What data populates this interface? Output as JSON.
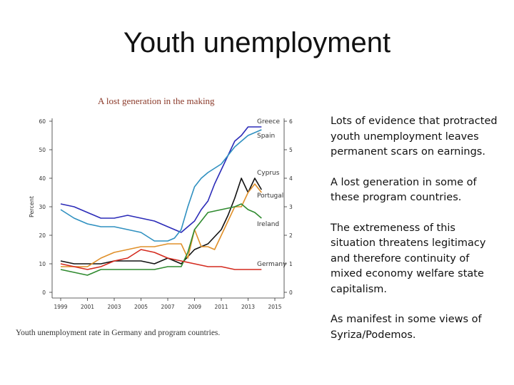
{
  "slide": {
    "title": "Youth unemployment",
    "bullets": [
      "Lots of evidence that protracted youth unemployment leaves permanent scars on earnings.",
      "A lost generation in some of these program countries.",
      "The extremeness of this situation threatens legitimacy and therefore continuity of mixed economy welfare state capitalism.",
      "As manifest in some views of Syriza/Podemos."
    ]
  },
  "chart_data": {
    "type": "line",
    "title": "A lost generation in the making",
    "caption": "Youth unemployment rate in Germany and program countries.",
    "ylabel": "Percent",
    "xlim": [
      1999,
      2015.5
    ],
    "ylim": [
      0,
      60
    ],
    "x_ticks": [
      "1999",
      "2001",
      "2003",
      "2005",
      "2007",
      "2009",
      "2011",
      "2013",
      "2015"
    ],
    "y_ticks": [
      "0",
      "10",
      "20",
      "30",
      "40",
      "50",
      "60"
    ],
    "grid": false,
    "legend": "direct labels at line ends",
    "series": [
      {
        "name": "Greece",
        "color": "#2b2bb8",
        "label_y": 60,
        "x": [
          1999,
          2000,
          2001,
          2002,
          2003,
          2004,
          2005,
          2006,
          2007,
          2008,
          2008.5,
          2009,
          2009.5,
          2010,
          2010.5,
          2011,
          2011.5,
          2012,
          2012.5,
          2013,
          2013.5,
          2014
        ],
        "y": [
          31,
          30,
          28,
          26,
          26,
          27,
          26,
          25,
          23,
          21,
          23,
          25,
          29,
          32,
          38,
          43,
          48,
          53,
          55,
          58,
          58,
          58
        ]
      },
      {
        "name": "Spain",
        "color": "#2f90c0",
        "label_y": 55,
        "x": [
          1999,
          2000,
          2001,
          2002,
          2003,
          2004,
          2005,
          2006,
          2007,
          2007.5,
          2008,
          2008.5,
          2009,
          2009.5,
          2010,
          2011,
          2012,
          2012.5,
          2013,
          2013.5,
          2014
        ],
        "y": [
          29,
          26,
          24,
          23,
          23,
          22,
          21,
          18,
          18,
          19,
          22,
          30,
          37,
          40,
          42,
          45,
          51,
          53,
          55,
          56,
          57
        ]
      },
      {
        "name": "Cyprus",
        "color": "#111111",
        "label_y": 42,
        "x": [
          1999,
          2000,
          2001,
          2002,
          2003,
          2004,
          2005,
          2006,
          2007,
          2008,
          2009,
          2010,
          2011,
          2011.5,
          2012,
          2012.5,
          2013,
          2013.5,
          2014
        ],
        "y": [
          11,
          10,
          10,
          10,
          11,
          11,
          11,
          10,
          12,
          10,
          15,
          17,
          22,
          27,
          33,
          40,
          35,
          40,
          36
        ]
      },
      {
        "name": "Portugal",
        "color": "#e0902a",
        "label_y": 34,
        "x": [
          1999,
          2000,
          2001,
          2002,
          2003,
          2004,
          2005,
          2006,
          2007,
          2008,
          2008.5,
          2009,
          2009.5,
          2010,
          2010.5,
          2011,
          2011.5,
          2012,
          2012.5,
          2013,
          2013.5,
          2014
        ],
        "y": [
          9,
          9,
          9,
          12,
          14,
          15,
          16,
          16,
          17,
          17,
          12,
          22,
          16,
          16,
          15,
          20,
          25,
          30,
          30,
          35,
          38,
          35
        ]
      },
      {
        "name": "Ireland",
        "color": "#2f8a2f",
        "label_y": 24,
        "x": [
          1999,
          2000,
          2001,
          2002,
          2003,
          2004,
          2005,
          2006,
          2007,
          2008,
          2008.5,
          2009,
          2009.5,
          2010,
          2011,
          2012,
          2012.5,
          2013,
          2013.5,
          2014
        ],
        "y": [
          8,
          7,
          6,
          8,
          8,
          8,
          8,
          8,
          9,
          9,
          14,
          22,
          25,
          28,
          29,
          30,
          31,
          29,
          28,
          26
        ]
      },
      {
        "name": "Germany",
        "color": "#d42a1e",
        "label_y": 10,
        "x": [
          1999,
          2000,
          2001,
          2002,
          2003,
          2004,
          2005,
          2006,
          2007,
          2008,
          2009,
          2010,
          2011,
          2012,
          2013,
          2014
        ],
        "y": [
          10,
          9,
          8,
          9,
          11,
          12,
          15,
          14,
          12,
          11,
          10,
          9,
          9,
          8,
          8,
          8
        ]
      }
    ]
  }
}
